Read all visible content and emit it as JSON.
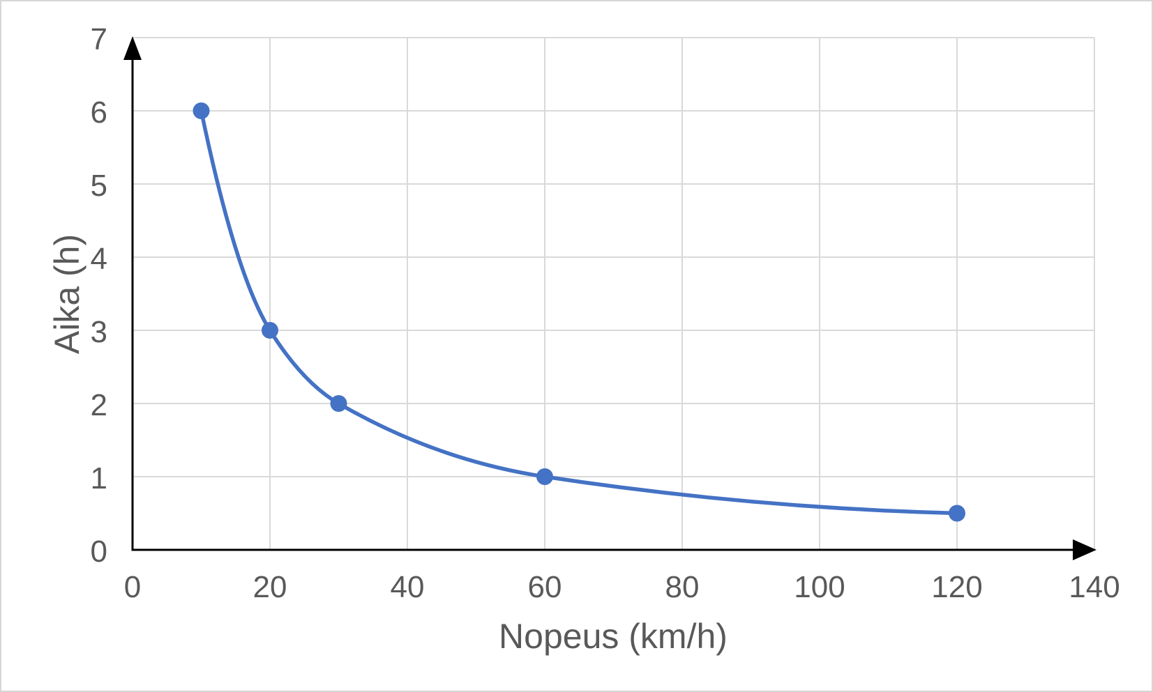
{
  "chart_data": {
    "type": "line",
    "title": "",
    "xlabel": "Nopeus (km/h)",
    "ylabel": "Aika (h)",
    "series": [
      {
        "name": "Aika (h) as function of Nopeus (km/h)",
        "x": [
          10,
          20,
          30,
          60,
          120
        ],
        "y": [
          6,
          3,
          2,
          1,
          0.5
        ],
        "color": "#4472C4",
        "marker": "circle",
        "smooth": true
      }
    ],
    "xlim": [
      0,
      140
    ],
    "ylim": [
      0,
      7
    ],
    "xticks": [
      0,
      20,
      40,
      60,
      80,
      100,
      120,
      140
    ],
    "yticks": [
      0,
      1,
      2,
      3,
      4,
      5,
      6,
      7
    ],
    "grid": true,
    "legend": false,
    "axis_arrows": true,
    "colors": {
      "line": "#4472C4",
      "grid": "#D9D9D9",
      "axis": "#000000",
      "text": "#595959",
      "background": "#FFFFFF",
      "frame_border": "#D6D6D6"
    }
  }
}
